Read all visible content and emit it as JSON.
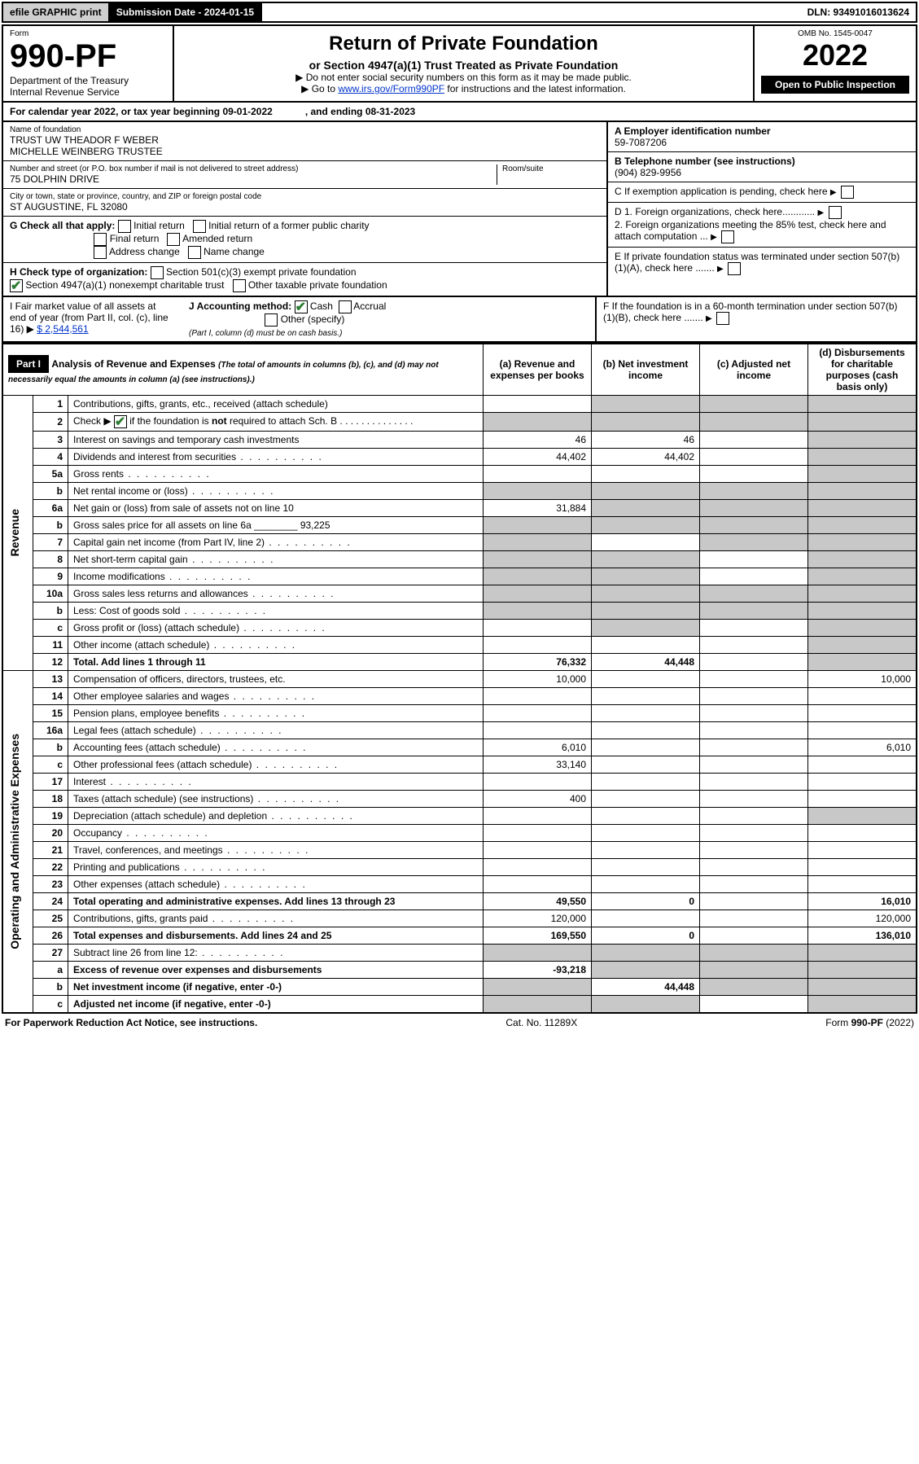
{
  "topbar": {
    "efile": "efile GRAPHIC print",
    "subdate": "Submission Date - 2024-01-15",
    "dln": "DLN: 93491016013624"
  },
  "header": {
    "form_label": "Form",
    "form_no": "990-PF",
    "dept": "Department of the Treasury",
    "irs": "Internal Revenue Service",
    "title": "Return of Private Foundation",
    "subtitle": "or Section 4947(a)(1) Trust Treated as Private Foundation",
    "note1": "▶ Do not enter social security numbers on this form as it may be made public.",
    "note2_pre": "▶ Go to ",
    "note2_link": "www.irs.gov/Form990PF",
    "note2_post": " for instructions and the latest information.",
    "omb": "OMB No. 1545-0047",
    "year": "2022",
    "open": "Open to Public Inspection"
  },
  "cal": {
    "text1": "For calendar year 2022, or tax year beginning 09-01-2022",
    "text2": ", and ending 08-31-2023"
  },
  "info": {
    "name_label": "Name of foundation",
    "name1": "TRUST UW THEADOR F WEBER",
    "name2": "MICHELLE WEINBERG TRUSTEE",
    "addr_label": "Number and street (or P.O. box number if mail is not delivered to street address)",
    "addr": "75 DOLPHIN DRIVE",
    "room_label": "Room/suite",
    "city_label": "City or town, state or province, country, and ZIP or foreign postal code",
    "city": "ST AUGUSTINE, FL  32080",
    "ein_label": "A Employer identification number",
    "ein": "59-7087206",
    "tel_label": "B Telephone number (see instructions)",
    "tel": "(904) 829-9956",
    "c": "C If exemption application is pending, check here",
    "d1": "D 1. Foreign organizations, check here............",
    "d2": "2. Foreign organizations meeting the 85% test, check here and attach computation ...",
    "e": "E If private foundation status was terminated under section 507(b)(1)(A), check here .......",
    "f": "F If the foundation is in a 60-month termination under section 507(b)(1)(B), check here .......",
    "g_label": "G Check all that apply:",
    "g_opts": [
      "Initial return",
      "Final return",
      "Address change",
      "Initial return of a former public charity",
      "Amended return",
      "Name change"
    ],
    "h_label": "H Check type of organization:",
    "h1": "Section 501(c)(3) exempt private foundation",
    "h2": "Section 4947(a)(1) nonexempt charitable trust",
    "h3": "Other taxable private foundation",
    "i_label": "I Fair market value of all assets at end of year (from Part II, col. (c), line 16)",
    "i_val": "$  2,544,561",
    "j_label": "J Accounting method:",
    "j_cash": "Cash",
    "j_accrual": "Accrual",
    "j_other": "Other (specify)",
    "j_note": "(Part I, column (d) must be on cash basis.)"
  },
  "part1": {
    "title": "Part I",
    "heading": "Analysis of Revenue and Expenses",
    "heading_note": "(The total of amounts in columns (b), (c), and (d) may not necessarily equal the amounts in column (a) (see instructions).)",
    "col_a": "(a) Revenue and expenses per books",
    "col_b": "(b) Net investment income",
    "col_c": "(c) Adjusted net income",
    "col_d": "(d) Disbursements for charitable purposes (cash basis only)",
    "side_rev": "Revenue",
    "side_exp": "Operating and Administrative Expenses",
    "rows": [
      {
        "n": "1",
        "t": "Contributions, gifts, grants, etc., received (attach schedule)"
      },
      {
        "n": "2",
        "t": "Check ▶ ☑ if the foundation is not required to attach Sch. B"
      },
      {
        "n": "3",
        "t": "Interest on savings and temporary cash investments",
        "a": "46",
        "b": "46"
      },
      {
        "n": "4",
        "t": "Dividends and interest from securities",
        "a": "44,402",
        "b": "44,402"
      },
      {
        "n": "5a",
        "t": "Gross rents"
      },
      {
        "n": "b",
        "t": "Net rental income or (loss)"
      },
      {
        "n": "6a",
        "t": "Net gain or (loss) from sale of assets not on line 10",
        "a": "31,884"
      },
      {
        "n": "b",
        "t": "Gross sales price for all assets on line 6a ________ 93,225"
      },
      {
        "n": "7",
        "t": "Capital gain net income (from Part IV, line 2)"
      },
      {
        "n": "8",
        "t": "Net short-term capital gain"
      },
      {
        "n": "9",
        "t": "Income modifications"
      },
      {
        "n": "10a",
        "t": "Gross sales less returns and allowances"
      },
      {
        "n": "b",
        "t": "Less: Cost of goods sold"
      },
      {
        "n": "c",
        "t": "Gross profit or (loss) (attach schedule)"
      },
      {
        "n": "11",
        "t": "Other income (attach schedule)"
      },
      {
        "n": "12",
        "t": "Total. Add lines 1 through 11",
        "a": "76,332",
        "b": "44,448",
        "bold": true
      },
      {
        "n": "13",
        "t": "Compensation of officers, directors, trustees, etc.",
        "a": "10,000",
        "d": "10,000"
      },
      {
        "n": "14",
        "t": "Other employee salaries and wages"
      },
      {
        "n": "15",
        "t": "Pension plans, employee benefits"
      },
      {
        "n": "16a",
        "t": "Legal fees (attach schedule)"
      },
      {
        "n": "b",
        "t": "Accounting fees (attach schedule)",
        "a": "6,010",
        "d": "6,010"
      },
      {
        "n": "c",
        "t": "Other professional fees (attach schedule)",
        "a": "33,140"
      },
      {
        "n": "17",
        "t": "Interest"
      },
      {
        "n": "18",
        "t": "Taxes (attach schedule) (see instructions)",
        "a": "400"
      },
      {
        "n": "19",
        "t": "Depreciation (attach schedule) and depletion"
      },
      {
        "n": "20",
        "t": "Occupancy"
      },
      {
        "n": "21",
        "t": "Travel, conferences, and meetings"
      },
      {
        "n": "22",
        "t": "Printing and publications"
      },
      {
        "n": "23",
        "t": "Other expenses (attach schedule)"
      },
      {
        "n": "24",
        "t": "Total operating and administrative expenses. Add lines 13 through 23",
        "a": "49,550",
        "b": "0",
        "d": "16,010",
        "bold": true
      },
      {
        "n": "25",
        "t": "Contributions, gifts, grants paid",
        "a": "120,000",
        "d": "120,000"
      },
      {
        "n": "26",
        "t": "Total expenses and disbursements. Add lines 24 and 25",
        "a": "169,550",
        "b": "0",
        "d": "136,010",
        "bold": true
      },
      {
        "n": "27",
        "t": "Subtract line 26 from line 12:"
      },
      {
        "n": "a",
        "t": "Excess of revenue over expenses and disbursements",
        "a": "-93,218",
        "bold": true
      },
      {
        "n": "b",
        "t": "Net investment income (if negative, enter -0-)",
        "b": "44,448",
        "bold": true
      },
      {
        "n": "c",
        "t": "Adjusted net income (if negative, enter -0-)",
        "bold": true
      }
    ],
    "shade_cols": {
      "1": [
        "b",
        "c",
        "d"
      ],
      "2": [
        "a",
        "b",
        "c",
        "d"
      ],
      "5a": [
        "d"
      ],
      "b_5": [
        "a",
        "b",
        "c",
        "d"
      ],
      "6a": [
        "b",
        "c",
        "d"
      ],
      "b_6": [
        "a",
        "b",
        "c",
        "d"
      ],
      "7": [
        "a",
        "c",
        "d"
      ],
      "8": [
        "a",
        "b",
        "d"
      ],
      "9": [
        "a",
        "b",
        "d"
      ],
      "10a": [
        "a",
        "b",
        "c",
        "d"
      ],
      "b_10": [
        "a",
        "b",
        "c",
        "d"
      ],
      "c_10": [
        "b",
        "d"
      ],
      "11": [
        "d"
      ],
      "12": [
        "d"
      ],
      "19": [
        "d"
      ],
      "27": [
        "a",
        "b",
        "c",
        "d"
      ],
      "a_27": [
        "b",
        "c",
        "d"
      ],
      "b_27": [
        "a",
        "c",
        "d"
      ],
      "c_27": [
        "a",
        "b",
        "d"
      ]
    }
  },
  "footer": {
    "left": "For Paperwork Reduction Act Notice, see instructions.",
    "mid": "Cat. No. 11289X",
    "right": "Form 990-PF (2022)"
  },
  "colors": {
    "black": "#000000",
    "white": "#ffffff",
    "grey": "#c8c8c8",
    "btn": "#cfcfcf",
    "link": "#0033cc",
    "check": "#2e7d32"
  }
}
